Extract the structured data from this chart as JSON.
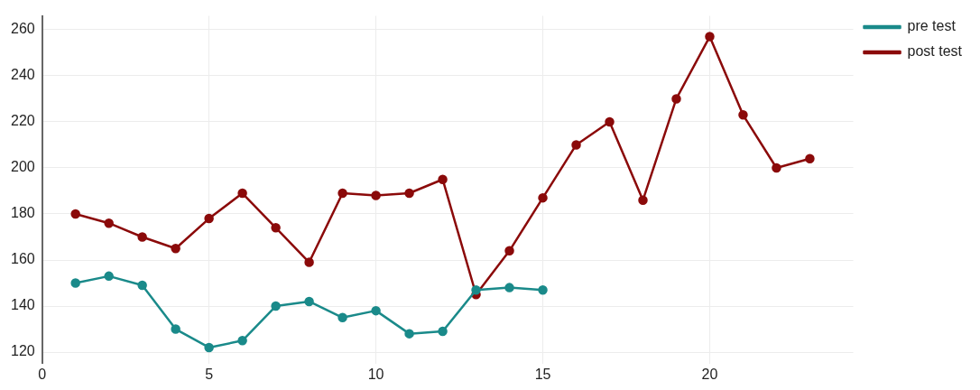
{
  "chart_data": {
    "type": "line",
    "x": [
      1,
      2,
      3,
      4,
      5,
      6,
      7,
      8,
      9,
      10,
      11,
      12,
      13,
      14,
      15,
      16,
      17,
      18,
      19,
      20,
      21,
      22,
      23
    ],
    "series": [
      {
        "name": "pre test",
        "color": "#1a8a8a",
        "values": [
          150,
          153,
          149,
          130,
          122,
          125,
          140,
          142,
          135,
          138,
          128,
          129,
          147,
          148,
          147,
          null,
          null,
          null,
          null,
          null,
          null,
          null,
          null
        ]
      },
      {
        "name": "post test",
        "color": "#8b0a0a",
        "values": [
          180,
          176,
          170,
          165,
          178,
          189,
          174,
          159,
          189,
          188,
          189,
          195,
          145,
          164,
          187,
          210,
          220,
          186,
          230,
          257,
          223,
          200,
          204
        ]
      }
    ],
    "xlim": [
      0,
      24.3
    ],
    "xticks": [
      0,
      5,
      10,
      15,
      20
    ],
    "ylim": [
      115,
      266
    ],
    "yticks": [
      120,
      140,
      160,
      180,
      200,
      220,
      240,
      260
    ],
    "grid": true,
    "legend": "top right",
    "marker": "circle",
    "line_style": "solid"
  }
}
